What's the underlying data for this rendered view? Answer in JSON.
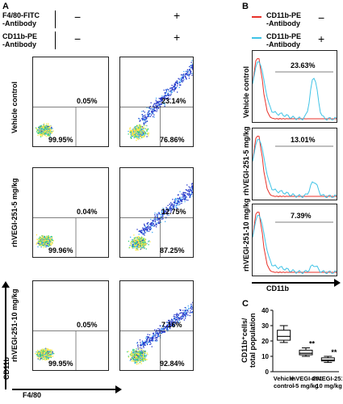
{
  "panels": {
    "a": "A",
    "b": "B",
    "c": "C"
  },
  "header": {
    "f480_label": "F4/80-FITC\n-Antibody",
    "cd11b_label": "CD11b-PE\n-Antibody",
    "minus": "−",
    "plus": "+"
  },
  "rows": [
    {
      "label": "Vehicle control",
      "q_left_top": "0.05%",
      "q_left_bottom": "99.95%",
      "q_right_top": "23.14%",
      "q_right_bottom": "76.86%"
    },
    {
      "label": "rhVEGI-251-5 mg/kg",
      "q_left_top": "0.04%",
      "q_left_bottom": "99.96%",
      "q_right_top": "12.75%",
      "q_right_bottom": "87.25%"
    },
    {
      "label": "rhVEGI-251-10 mg/kg",
      "q_left_top": "0.05%",
      "q_left_bottom": "99.95%",
      "q_right_top": "7.16%",
      "q_right_bottom": "92.84%"
    }
  ],
  "axes_a": {
    "y": "CD11b",
    "x": "F4/80"
  },
  "legend_b": [
    {
      "name": "CD11b-PE\n-Antibody",
      "sign": "−",
      "color": "#e8322a"
    },
    {
      "name": "CD11b-PE\n-Antibody",
      "sign": "+",
      "color": "#3fc3e6"
    }
  ],
  "hist_rows": [
    {
      "label": "Vehicle control",
      "pct": "23.63%"
    },
    {
      "label": "rhVEGI-251-5 mg/kg",
      "pct": "13.01%"
    },
    {
      "label": "rhVEGI-251-10 mg/kg",
      "pct": "7.39%"
    }
  ],
  "axis_b": "CD11b",
  "chart_data": {
    "type": "box",
    "ylabel": "CD11b⁺cells/\ntotal population",
    "ylim": [
      0,
      40
    ],
    "yticks": [
      "0",
      "10",
      "20",
      "30",
      "40"
    ],
    "categories": [
      "Vehicle\ncontrol",
      "rhVEGI-251\n-5 mg/kg",
      "rhVEGI-251\n-10 mg/kg"
    ],
    "boxes": [
      {
        "min": 19,
        "q1": 20.5,
        "median": 23,
        "q3": 27,
        "max": 30,
        "sig": ""
      },
      {
        "min": 10,
        "q1": 11,
        "median": 12,
        "q3": 14,
        "max": 15.5,
        "sig": "**"
      },
      {
        "min": 6,
        "q1": 7,
        "median": 7.5,
        "q3": 9,
        "max": 10,
        "sig": "**"
      }
    ]
  }
}
